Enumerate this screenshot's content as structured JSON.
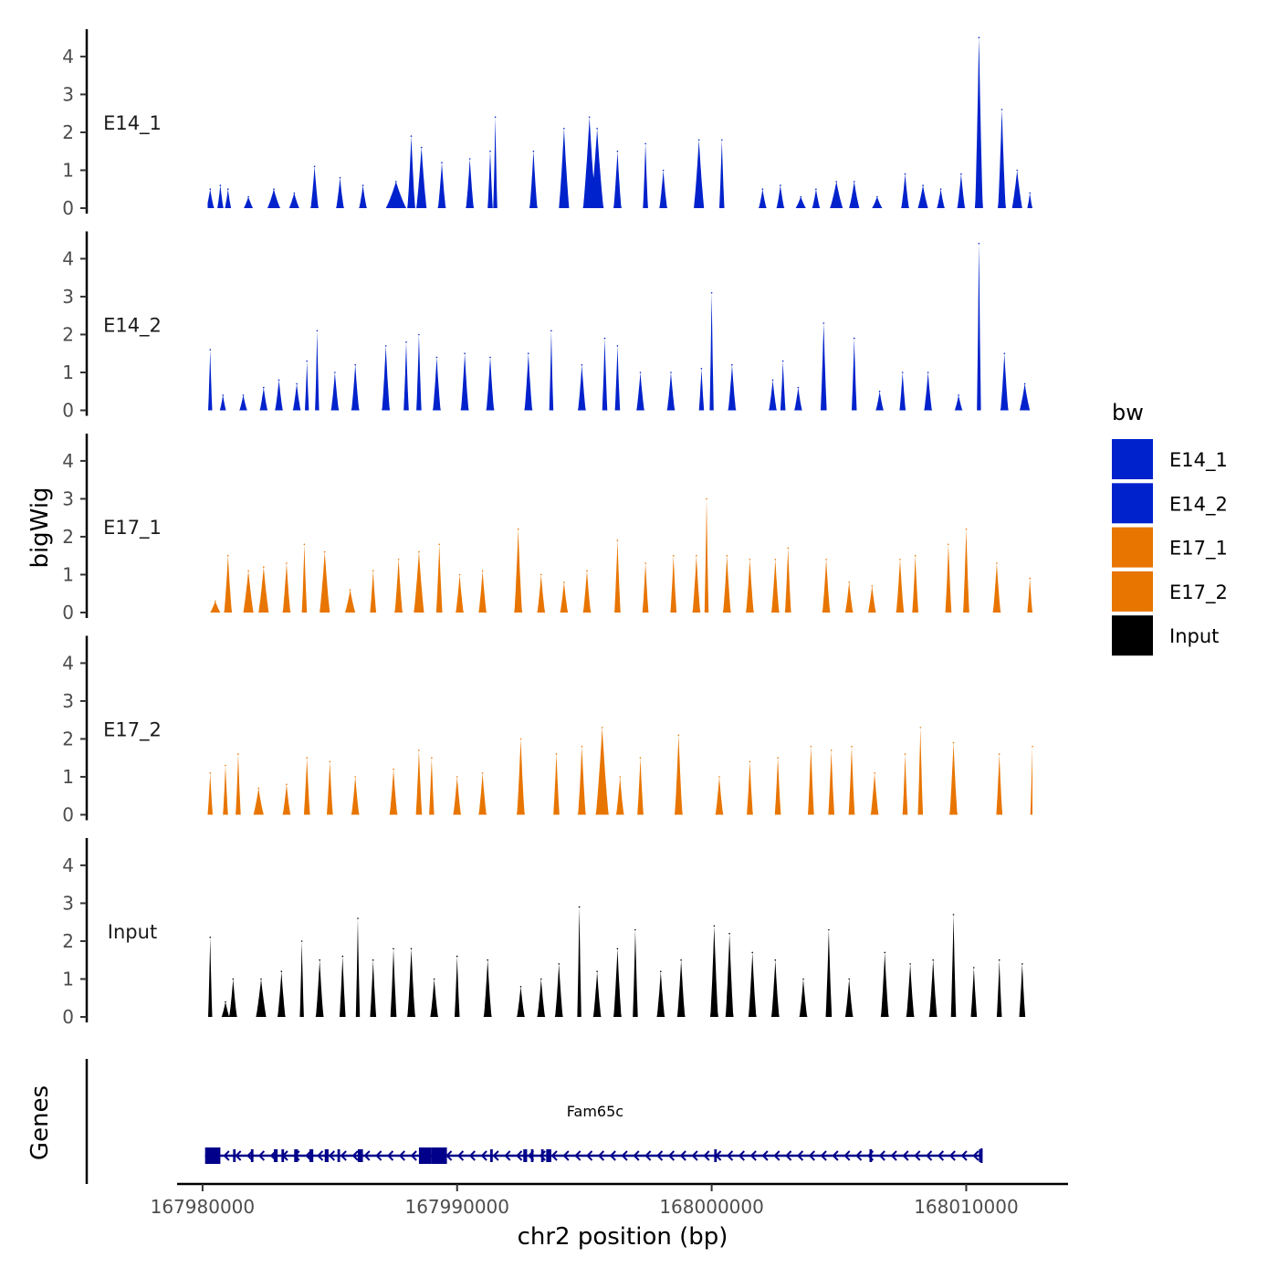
{
  "chart_data": {
    "type": "area",
    "chromosome": "chr2",
    "xlabel": "chr2 position (bp)",
    "ylabel": "bigWig",
    "gene_panel_label": "Genes",
    "xlim": [
      167979000,
      168014000
    ],
    "x_ticks": [
      167980000,
      167990000,
      168000000,
      168010000
    ],
    "x_tick_labels": [
      "167980000",
      "167990000",
      "168000000",
      "168010000"
    ],
    "ylim": [
      0,
      4.6
    ],
    "y_ticks": [
      0,
      1,
      2,
      3,
      4
    ],
    "y_tick_labels": [
      "0",
      "1",
      "2",
      "3",
      "4"
    ],
    "legend": {
      "title": "bw",
      "position": "right",
      "entries": [
        {
          "label": "E14_1",
          "color": "#0022CC"
        },
        {
          "label": "E14_2",
          "color": "#0022CC"
        },
        {
          "label": "E17_1",
          "color": "#E87500"
        },
        {
          "label": "E17_2",
          "color": "#E87500"
        },
        {
          "label": "Input",
          "color": "#000000"
        }
      ]
    },
    "track_range": [
      167980200,
      168012600
    ],
    "series": [
      {
        "name": "E14_1",
        "color": "#0022CC",
        "peaks": [
          [
            167980300,
            0.5,
            150
          ],
          [
            167980700,
            0.6,
            120
          ],
          [
            167981000,
            0.5,
            120
          ],
          [
            167981800,
            0.3,
            180
          ],
          [
            167982800,
            0.5,
            250
          ],
          [
            167983600,
            0.4,
            200
          ],
          [
            167984400,
            1.1,
            150
          ],
          [
            167985400,
            0.8,
            150
          ],
          [
            167986300,
            0.6,
            150
          ],
          [
            167987600,
            0.7,
            400
          ],
          [
            167988200,
            1.9,
            150
          ],
          [
            167988600,
            1.6,
            200
          ],
          [
            167989400,
            1.2,
            150
          ],
          [
            167990500,
            1.3,
            150
          ],
          [
            167991300,
            1.5,
            100
          ],
          [
            167991500,
            2.4,
            80
          ],
          [
            167993000,
            1.5,
            150
          ],
          [
            167994200,
            2.1,
            200
          ],
          [
            167995200,
            2.4,
            250
          ],
          [
            167995500,
            2.1,
            250
          ],
          [
            167996300,
            1.5,
            150
          ],
          [
            167997400,
            1.7,
            100
          ],
          [
            167998100,
            1.0,
            150
          ],
          [
            167999500,
            1.8,
            200
          ],
          [
            168000400,
            1.8,
            100
          ],
          [
            168002000,
            0.5,
            150
          ],
          [
            168002700,
            0.6,
            150
          ],
          [
            168003500,
            0.3,
            200
          ],
          [
            168004100,
            0.5,
            150
          ],
          [
            168004900,
            0.7,
            250
          ],
          [
            168005600,
            0.7,
            200
          ],
          [
            168006500,
            0.3,
            200
          ],
          [
            168007600,
            0.9,
            150
          ],
          [
            168008300,
            0.6,
            200
          ],
          [
            168009000,
            0.5,
            150
          ],
          [
            168009800,
            0.9,
            150
          ],
          [
            168010500,
            4.5,
            150
          ],
          [
            168011400,
            2.6,
            150
          ],
          [
            168012000,
            1.0,
            200
          ],
          [
            168012500,
            0.4,
            100
          ]
        ]
      },
      {
        "name": "E14_2",
        "color": "#0022CC",
        "peaks": [
          [
            167980300,
            1.6,
            80
          ],
          [
            167980800,
            0.4,
            120
          ],
          [
            167981600,
            0.4,
            150
          ],
          [
            167982400,
            0.6,
            150
          ],
          [
            167983000,
            0.8,
            150
          ],
          [
            167983700,
            0.7,
            150
          ],
          [
            167984100,
            1.3,
            80
          ],
          [
            167984500,
            2.1,
            80
          ],
          [
            167985200,
            1.0,
            150
          ],
          [
            167986000,
            1.2,
            150
          ],
          [
            167987200,
            1.7,
            150
          ],
          [
            167988000,
            1.8,
            100
          ],
          [
            167988500,
            2.0,
            100
          ],
          [
            167989200,
            1.4,
            150
          ],
          [
            167990300,
            1.5,
            150
          ],
          [
            167991300,
            1.4,
            150
          ],
          [
            167992800,
            1.5,
            150
          ],
          [
            167993700,
            2.1,
            80
          ],
          [
            167994900,
            1.2,
            150
          ],
          [
            167995800,
            1.9,
            100
          ],
          [
            167996300,
            1.7,
            100
          ],
          [
            167997200,
            1.0,
            150
          ],
          [
            167998400,
            1.0,
            150
          ],
          [
            167999600,
            1.1,
            100
          ],
          [
            168000000,
            3.1,
            80
          ],
          [
            168000800,
            1.2,
            150
          ],
          [
            168002400,
            0.8,
            150
          ],
          [
            168002800,
            1.3,
            100
          ],
          [
            168003400,
            0.6,
            150
          ],
          [
            168004400,
            2.3,
            120
          ],
          [
            168005600,
            1.9,
            100
          ],
          [
            168006600,
            0.5,
            150
          ],
          [
            168007500,
            1.0,
            120
          ],
          [
            168008500,
            1.0,
            150
          ],
          [
            168009700,
            0.4,
            150
          ],
          [
            168010500,
            4.4,
            80
          ],
          [
            168011500,
            1.5,
            150
          ],
          [
            168012300,
            0.7,
            200
          ]
        ]
      },
      {
        "name": "E17_1",
        "color": "#E87500",
        "peaks": [
          [
            167980500,
            0.3,
            200
          ],
          [
            167981000,
            1.5,
            150
          ],
          [
            167981800,
            1.1,
            200
          ],
          [
            167982400,
            1.2,
            200
          ],
          [
            167983300,
            1.3,
            150
          ],
          [
            167984000,
            1.8,
            100
          ],
          [
            167984800,
            1.6,
            200
          ],
          [
            167985800,
            0.6,
            200
          ],
          [
            167986700,
            1.1,
            120
          ],
          [
            167987700,
            1.4,
            150
          ],
          [
            167988500,
            1.6,
            200
          ],
          [
            167989300,
            1.8,
            120
          ],
          [
            167990100,
            1.0,
            150
          ],
          [
            167991000,
            1.1,
            150
          ],
          [
            167992400,
            2.2,
            150
          ],
          [
            167993300,
            1.0,
            150
          ],
          [
            167994200,
            0.8,
            150
          ],
          [
            167995100,
            1.1,
            150
          ],
          [
            167996300,
            1.9,
            120
          ],
          [
            167997400,
            1.3,
            120
          ],
          [
            167998500,
            1.5,
            120
          ],
          [
            167999400,
            1.5,
            150
          ],
          [
            167999800,
            3.0,
            80
          ],
          [
            168000600,
            1.5,
            150
          ],
          [
            168001500,
            1.4,
            150
          ],
          [
            168002500,
            1.4,
            150
          ],
          [
            168003000,
            1.7,
            120
          ],
          [
            168004500,
            1.4,
            150
          ],
          [
            168005400,
            0.8,
            150
          ],
          [
            168006300,
            0.7,
            150
          ],
          [
            168007400,
            1.4,
            150
          ],
          [
            168008000,
            1.5,
            120
          ],
          [
            168009300,
            1.8,
            120
          ],
          [
            168010000,
            2.2,
            120
          ],
          [
            168011200,
            1.3,
            150
          ],
          [
            168012500,
            0.9,
            100
          ]
        ]
      },
      {
        "name": "E17_2",
        "color": "#E87500",
        "peaks": [
          [
            167980300,
            1.1,
            100
          ],
          [
            167980900,
            1.3,
            100
          ],
          [
            167981400,
            1.6,
            100
          ],
          [
            167982200,
            0.7,
            200
          ],
          [
            167983300,
            0.8,
            150
          ],
          [
            167984100,
            1.5,
            120
          ],
          [
            167985000,
            1.4,
            120
          ],
          [
            167986000,
            1.0,
            150
          ],
          [
            167987500,
            1.2,
            150
          ],
          [
            167988500,
            1.7,
            120
          ],
          [
            167989000,
            1.5,
            100
          ],
          [
            167990000,
            1.0,
            150
          ],
          [
            167991000,
            1.1,
            150
          ],
          [
            167992500,
            2.0,
            150
          ],
          [
            167993900,
            1.6,
            120
          ],
          [
            167994900,
            1.8,
            150
          ],
          [
            167995700,
            2.3,
            250
          ],
          [
            167996400,
            1.0,
            150
          ],
          [
            167997200,
            1.5,
            120
          ],
          [
            167998700,
            2.1,
            150
          ],
          [
            168000300,
            1.0,
            150
          ],
          [
            168001500,
            1.4,
            120
          ],
          [
            168002600,
            1.5,
            120
          ],
          [
            168003900,
            1.8,
            120
          ],
          [
            168004700,
            1.7,
            120
          ],
          [
            168005500,
            1.8,
            120
          ],
          [
            168006400,
            1.1,
            150
          ],
          [
            168007600,
            1.6,
            100
          ],
          [
            168008200,
            2.3,
            100
          ],
          [
            168009500,
            1.9,
            150
          ],
          [
            168011300,
            1.6,
            120
          ],
          [
            168012600,
            1.8,
            80
          ]
        ]
      },
      {
        "name": "Input",
        "color": "#000000",
        "peaks": [
          [
            167980300,
            2.1,
            80
          ],
          [
            167980900,
            0.4,
            150
          ],
          [
            167981200,
            1.0,
            150
          ],
          [
            167982300,
            1.0,
            200
          ],
          [
            167983100,
            1.2,
            150
          ],
          [
            167983900,
            2.0,
            80
          ],
          [
            167984600,
            1.5,
            150
          ],
          [
            167985500,
            1.6,
            120
          ],
          [
            167986100,
            2.6,
            80
          ],
          [
            167986700,
            1.5,
            120
          ],
          [
            167987500,
            1.8,
            120
          ],
          [
            167988200,
            1.8,
            150
          ],
          [
            167989100,
            1.0,
            150
          ],
          [
            167990000,
            1.6,
            100
          ],
          [
            167991200,
            1.5,
            150
          ],
          [
            167992500,
            0.8,
            150
          ],
          [
            167993300,
            1.0,
            150
          ],
          [
            167994000,
            1.4,
            150
          ],
          [
            167994800,
            2.9,
            80
          ],
          [
            167995500,
            1.2,
            150
          ],
          [
            167996300,
            1.8,
            150
          ],
          [
            167997000,
            2.3,
            100
          ],
          [
            167998000,
            1.2,
            150
          ],
          [
            167998800,
            1.5,
            150
          ],
          [
            168000100,
            2.4,
            150
          ],
          [
            168000700,
            2.2,
            150
          ],
          [
            168001600,
            1.7,
            150
          ],
          [
            168002500,
            1.5,
            150
          ],
          [
            168003600,
            1.0,
            150
          ],
          [
            168004600,
            2.3,
            120
          ],
          [
            168005400,
            1.0,
            150
          ],
          [
            168006800,
            1.7,
            150
          ],
          [
            168007800,
            1.4,
            150
          ],
          [
            168008700,
            1.5,
            150
          ],
          [
            168009500,
            2.7,
            100
          ],
          [
            168010300,
            1.3,
            120
          ],
          [
            168011300,
            1.5,
            100
          ],
          [
            168012200,
            1.4,
            120
          ]
        ]
      }
    ],
    "gene": {
      "name": "Fam65c",
      "strand": "-",
      "start": 167980100,
      "end": 168010600,
      "exons": [
        [
          167980100,
          167980700
        ],
        [
          167981200,
          167981300
        ],
        [
          167981900,
          167982000
        ],
        [
          167982800,
          167982950
        ],
        [
          167983100,
          167983200
        ],
        [
          167983600,
          167983750
        ],
        [
          167984200,
          167984350
        ],
        [
          167984800,
          167984950
        ],
        [
          167985300,
          167985400
        ],
        [
          167986100,
          167986300
        ],
        [
          167988500,
          167989000
        ],
        [
          167989000,
          167989600
        ],
        [
          167991300,
          167991400
        ],
        [
          167992600,
          167992750
        ],
        [
          167992900,
          167993000
        ],
        [
          167993300,
          167993400
        ],
        [
          167993500,
          167993700
        ],
        [
          168000100,
          168000200
        ],
        [
          168006200,
          168006300
        ],
        [
          168010500,
          168010600
        ]
      ]
    }
  }
}
